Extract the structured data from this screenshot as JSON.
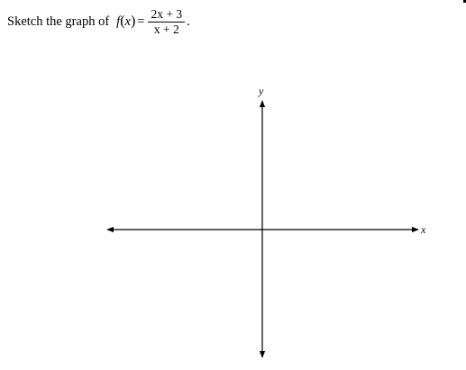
{
  "question": {
    "lead": "Sketch the graph of",
    "func_name": "f",
    "open_paren": "(",
    "var": "x",
    "close_paren": ")",
    "equals": "=",
    "numerator": "2x + 3",
    "denominator": "x + 2",
    "end_punct": "."
  },
  "axes": {
    "x_label": "x",
    "y_label": "y"
  }
}
